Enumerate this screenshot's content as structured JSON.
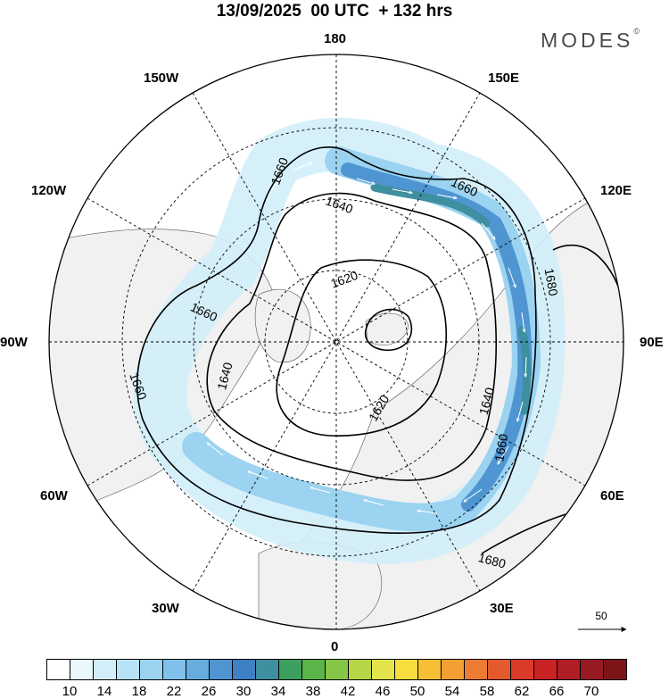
{
  "title": "13/09/2025  00 UTC  + 132 hrs",
  "brand": "MODES",
  "brand_mark": "©",
  "longitude_labels": {
    "top": "180",
    "bottom": "0",
    "left": "90W",
    "right": "90E",
    "upper_left_1": "150W",
    "upper_left_2": "120W",
    "lower_left_1": "60W",
    "lower_left_2": "30W",
    "upper_right_1": "150E",
    "upper_right_2": "120E",
    "lower_right_1": "60E",
    "lower_right_2": "30E"
  },
  "contour_labels": {
    "c1": "1660",
    "c2": "1640",
    "c3": "1620",
    "c4": "1660",
    "c5": "1640",
    "c6": "1660",
    "c7": "1620",
    "c8": "1640",
    "c9": "1660",
    "c10": "1680",
    "c11": "1680",
    "c12": "1660"
  },
  "wind_scale": {
    "value": "50"
  },
  "colorbar": {
    "ticks": [
      "10",
      "14",
      "18",
      "22",
      "26",
      "30",
      "34",
      "38",
      "42",
      "46",
      "50",
      "54",
      "58",
      "62",
      "66",
      "70"
    ],
    "colors": [
      "#ffffff",
      "#eaf7fc",
      "#d2eefa",
      "#b8e2f6",
      "#9bd3f1",
      "#7fc1ea",
      "#66acdf",
      "#4f95d2",
      "#3d80c3",
      "#3e8f9f",
      "#3da05f",
      "#5ab548",
      "#86c646",
      "#b6d647",
      "#e3e34c",
      "#f7de3f",
      "#f6bf36",
      "#f29f34",
      "#ec7c31",
      "#e55a2c",
      "#da3a28",
      "#c92323",
      "#b11d24",
      "#981a22",
      "#7d1418"
    ]
  },
  "colors": {
    "ocean": "#ffffff",
    "land": "#f1f1f1",
    "jet_light": "#cde8f6",
    "jet_mid": "#7fc1ea",
    "jet_strong": "#3d80c3",
    "jet_core": "#3e8f9f"
  }
}
